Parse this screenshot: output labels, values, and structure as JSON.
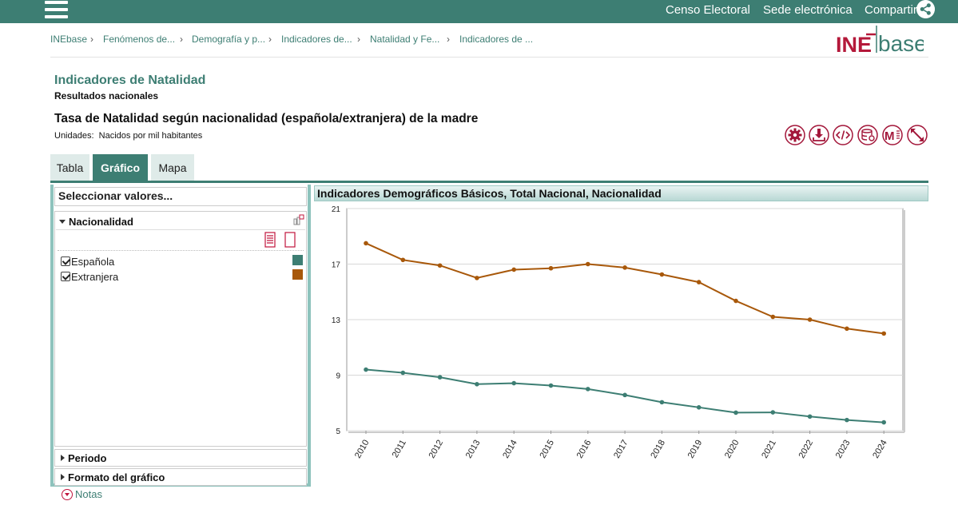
{
  "topnav": {
    "links": [
      "Censo Electoral",
      "Sede electrónica",
      "Compartir"
    ]
  },
  "breadcrumb": [
    "INEbase",
    "Fenómenos de...",
    "Demografía y p...",
    "Indicadores de...",
    "Natalidad y Fe...",
    "Indicadores de ..."
  ],
  "logo": {
    "text_a": "INE",
    "text_b": "base"
  },
  "page": {
    "title": "Indicadores de Natalidad",
    "subtitle": "Resultados nacionales",
    "table_title": "Tasa de Natalidad según nacionalidad (española/extranjera) de la madre",
    "units_label": "Unidades:",
    "units_value": "Nacidos por mil habitantes"
  },
  "tools": [
    "gear-icon",
    "download-icon",
    "code-icon",
    "database-icon",
    "mobile-icon",
    "expand-icon"
  ],
  "tabs": [
    {
      "label": "Tabla",
      "active": false
    },
    {
      "label": "Gráfico",
      "active": true
    },
    {
      "label": "Mapa",
      "active": false
    }
  ],
  "panel": {
    "header": "Seleccionar valores...",
    "nacionalidad": {
      "label": "Nacionalidad",
      "items": [
        {
          "label": "Española",
          "checked": true,
          "color": "#3d7e73"
        },
        {
          "label": "Extranjera",
          "checked": true,
          "color": "#a8580a"
        }
      ]
    },
    "periodo": "Periodo",
    "formato": "Formato del gráfico",
    "notas": "Notas"
  },
  "chart_data": {
    "type": "line",
    "title": "Indicadores Demográficos Básicos, Total Nacional, Nacionalidad",
    "x": [
      "2010",
      "2011",
      "2012",
      "2013",
      "2014",
      "2015",
      "2016",
      "2017",
      "2018",
      "2019",
      "2020",
      "2021",
      "2022",
      "2023",
      "2024"
    ],
    "ylim": [
      5,
      21
    ],
    "yticks": [
      "5",
      "9",
      "13",
      "17",
      "21"
    ],
    "grid": true,
    "series": [
      {
        "name": "Española",
        "color": "#3d7e73",
        "values": [
          9.4,
          9.17,
          8.85,
          8.35,
          8.42,
          8.25,
          8.0,
          7.57,
          7.05,
          6.68,
          6.3,
          6.32,
          6.02,
          5.77,
          5.6
        ]
      },
      {
        "name": "Extranjera",
        "color": "#a8580a",
        "values": [
          18.5,
          17.3,
          16.9,
          16.0,
          16.6,
          16.7,
          17.0,
          16.75,
          16.25,
          15.7,
          14.35,
          13.2,
          13.0,
          12.35,
          12.0
        ]
      }
    ]
  }
}
